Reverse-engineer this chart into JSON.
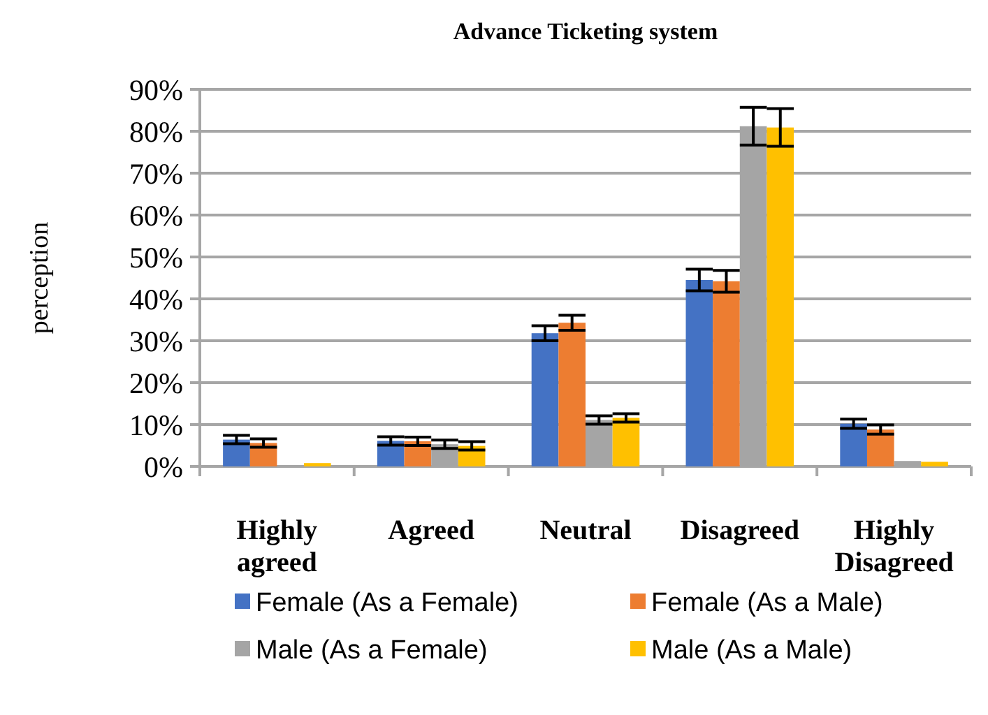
{
  "chart_data": {
    "type": "bar",
    "title": "Advance Ticketing system",
    "ylabel": "perception",
    "categories": [
      "Highly agreed",
      "Agreed",
      "Neutral",
      "Disagreed",
      "Highly Disagreed"
    ],
    "series": [
      {
        "name": "Female (As a Female)",
        "color": "#4472c4",
        "values": [
          6.4,
          6.1,
          31.8,
          44.5,
          10.2
        ],
        "errors": [
          1,
          1,
          1.8,
          2.6,
          1.1
        ]
      },
      {
        "name": "Female (As a Male)",
        "color": "#ed7d31",
        "values": [
          5.6,
          6.0,
          34.3,
          44.2,
          8.8
        ],
        "errors": [
          1,
          1,
          1.8,
          2.6,
          1.1
        ]
      },
      {
        "name": "Male (As a Female)",
        "color": "#a5a5a5",
        "values": [
          null,
          5.3,
          11.1,
          81.2,
          1.3
        ],
        "errors": [
          null,
          1,
          1,
          4.5,
          null
        ]
      },
      {
        "name": "Male (As a Male)",
        "color": "#ffc000",
        "values": [
          0.8,
          4.9,
          11.6,
          80.9,
          1.1
        ],
        "errors": [
          null,
          1,
          1,
          4.5,
          null
        ]
      }
    ],
    "ylim": [
      0,
      90
    ],
    "yticks": [
      {
        "value": 0,
        "label": "0%"
      },
      {
        "value": 10,
        "label": "10%"
      },
      {
        "value": 20,
        "label": "20%"
      },
      {
        "value": 30,
        "label": "30%"
      },
      {
        "value": 40,
        "label": "40%"
      },
      {
        "value": 50,
        "label": "50%"
      },
      {
        "value": 60,
        "label": "60%"
      },
      {
        "value": 70,
        "label": "70%"
      },
      {
        "value": 80,
        "label": "80%"
      },
      {
        "value": 90,
        "label": "90%"
      }
    ],
    "grid": "y",
    "legend": "bottom"
  }
}
